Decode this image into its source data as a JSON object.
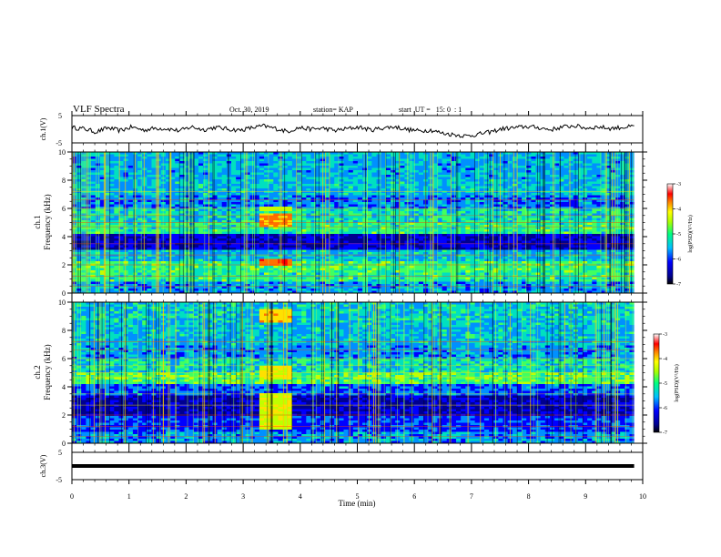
{
  "header": {
    "title": "VLF Spectra",
    "date": "Oct. 30, 2019",
    "station": "station= KAP",
    "start_ut": "start  UT =   15: 0  : 1"
  },
  "chart_data": [
    {
      "id": "ch1-waveform",
      "type": "line",
      "ylabel": "ch.1(V)",
      "ylim": [
        -5,
        5
      ],
      "y_ticks": [
        "5",
        "-5"
      ],
      "xlim": [
        0,
        9.85
      ],
      "y_envelope": [
        0.6,
        0.2,
        -1.0,
        0.5,
        -0.5,
        0.8,
        -0.3,
        0.4,
        0.2,
        -0.6,
        0.9,
        -0.2,
        0.7,
        0.1,
        -0.4,
        0.5,
        1.2,
        0.3,
        -0.8,
        0.6,
        0.0,
        0.4,
        -0.5,
        0.2,
        0.8,
        -0.3,
        0.5,
        0.9,
        -0.1,
        -0.6,
        -0.3,
        -1.5,
        -2.0,
        -2.5,
        -1.8,
        -1.0,
        0.2,
        0.5,
        1.0,
        0.6,
        -0.2,
        0.8,
        1.3,
        0.4,
        0.9,
        0.3,
        0.7,
        1.0
      ]
    },
    {
      "id": "ch1-spectrogram",
      "type": "heatmap",
      "ylabel_line1": "ch.1",
      "ylabel_line2": "Frequency (kHz)",
      "ylim": [
        0,
        10
      ],
      "y_ticks": [
        "0",
        "2",
        "4",
        "6",
        "8",
        "10"
      ],
      "colorbar": {
        "label": "log(PSD)(V²/Hz)",
        "range": [
          -7,
          -3
        ],
        "ticks": [
          "-3",
          "-4",
          "-5",
          "-6",
          "-7"
        ]
      }
    },
    {
      "id": "ch2-spectrogram",
      "type": "heatmap",
      "ylabel_line1": "ch.2",
      "ylabel_line2": "Frequency (kHz)",
      "ylim": [
        0,
        10
      ],
      "y_ticks": [
        "0",
        "2",
        "4",
        "6",
        "8",
        "10"
      ],
      "colorbar": {
        "label": "log(PSD)(V²/Hz)",
        "range": [
          -7,
          -3
        ],
        "ticks": [
          "-3",
          "-4",
          "-5",
          "-6",
          "-7"
        ]
      }
    },
    {
      "id": "ch3-waveform",
      "type": "line",
      "ylabel": "ch.3(V)",
      "ylim": [
        -5,
        5
      ],
      "y_ticks": [
        "5",
        "-5"
      ],
      "y_constant": 0,
      "xlim": [
        0,
        9.85
      ]
    }
  ],
  "x_axis": {
    "label": "Time (min)",
    "range": [
      0,
      10
    ],
    "ticks": [
      "0",
      "1",
      "2",
      "3",
      "4",
      "5",
      "6",
      "7",
      "8",
      "9",
      "10"
    ]
  }
}
